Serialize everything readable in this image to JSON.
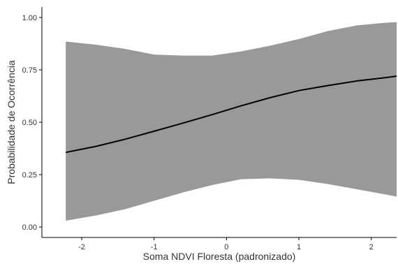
{
  "chart_data": {
    "type": "line",
    "xlabel": "Soma NDVI Floresta (padronizado)",
    "ylabel": "Probabilidade de Ocorrência",
    "xlim": [
      -2.55,
      2.35
    ],
    "ylim": [
      -0.05,
      1.05
    ],
    "x_ticks": [
      -2,
      -1,
      0,
      1,
      2
    ],
    "x_tick_labels": [
      "-2",
      "-1",
      "0",
      "1",
      "2"
    ],
    "y_ticks": [
      0,
      0.25,
      0.5,
      0.75,
      1
    ],
    "y_tick_labels": [
      "0.00",
      "0.25",
      "0.50",
      "0.75",
      "1.00"
    ],
    "grid": false,
    "legend": "none",
    "colors": {
      "line": "#000000",
      "ribbon": "#999999",
      "axis": "#000000",
      "text": "#333333"
    },
    "series": [
      {
        "x": [
          -2.22,
          -1.8,
          -1.4,
          -1.0,
          -0.6,
          -0.2,
          0.2,
          0.6,
          1.0,
          1.4,
          1.8,
          2.2,
          2.35
        ],
        "y": [
          0.356,
          0.385,
          0.419,
          0.457,
          0.496,
          0.536,
          0.578,
          0.617,
          0.651,
          0.675,
          0.697,
          0.713,
          0.72
        ],
        "lower": [
          0.03,
          0.055,
          0.085,
          0.125,
          0.165,
          0.2,
          0.228,
          0.232,
          0.225,
          0.205,
          0.18,
          0.155,
          0.145
        ],
        "upper": [
          0.885,
          0.87,
          0.85,
          0.823,
          0.818,
          0.818,
          0.838,
          0.865,
          0.897,
          0.935,
          0.962,
          0.975,
          0.978
        ]
      }
    ]
  }
}
